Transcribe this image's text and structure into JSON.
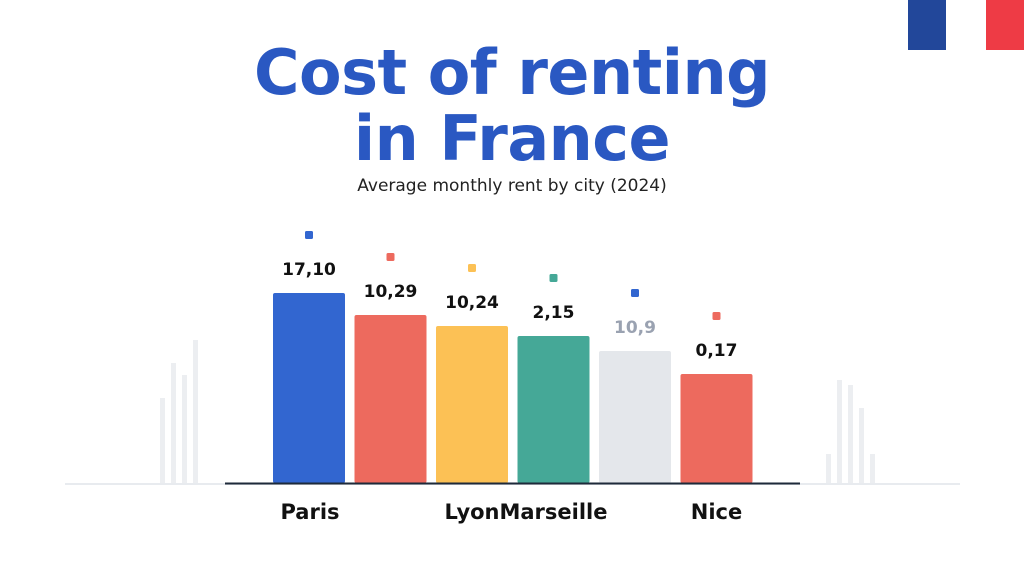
{
  "title_line1": "Cost of renting",
  "title_line2": "in France",
  "subtitle": "Average monthly rent by city (2024)",
  "chart_data": {
    "type": "bar",
    "title": "Cost of renting in France",
    "subtitle": "Average monthly rent by city (2024)",
    "categories": [
      "Paris",
      "",
      "Lyon",
      "Marseille",
      "",
      "Nice"
    ],
    "values": [
      190,
      168,
      157,
      147,
      132,
      109
    ],
    "value_labels": [
      "17,10",
      "10,29",
      "10,24",
      "2,15",
      "10,9",
      "0,17"
    ],
    "colors": [
      "#3266d0",
      "#ed6a5e",
      "#fcc155",
      "#45a897",
      "#e4e7eb",
      "#ed6a5e"
    ],
    "marker_colors": [
      "#3266d0",
      "#ed6a5e",
      "#fcc155",
      "#45a897",
      "#3266d0",
      "#ed6a5e"
    ],
    "muted_labels": [
      false,
      false,
      false,
      false,
      true,
      false
    ],
    "ylim": [
      0,
      200
    ],
    "grid": false,
    "legend": "none"
  },
  "flag_colors": [
    "#22479a",
    "#ee3b45"
  ]
}
